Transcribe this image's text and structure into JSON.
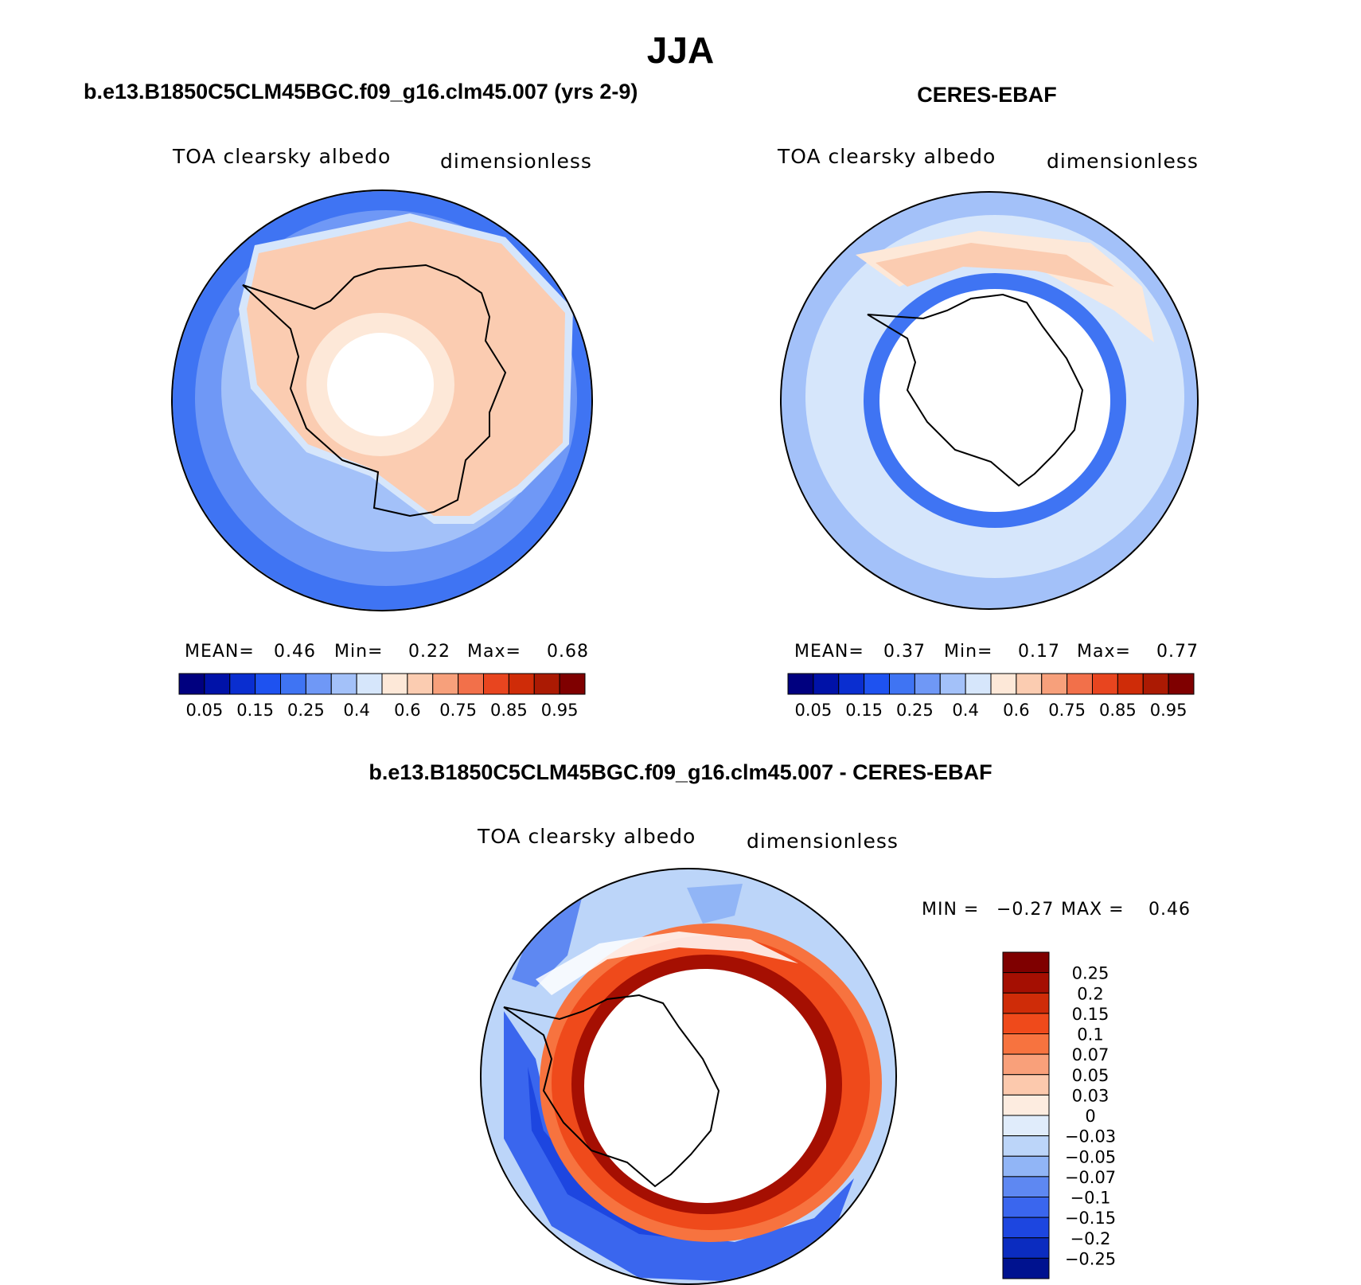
{
  "page_title": "JJA",
  "panels": [
    {
      "header": "b.e13.B1850C5CLM45BGC.f09_g16.clm45.007 (yrs 2-9)",
      "variable": "TOA clearsky albedo",
      "units": "dimensionless",
      "stats": {
        "mean_label": "MEAN=",
        "mean": "0.46",
        "min_label": "Min=",
        "min": "0.22",
        "max_label": "Max=",
        "max": "0.68"
      }
    },
    {
      "header": "CERES-EBAF",
      "variable": "TOA clearsky albedo",
      "units": "dimensionless",
      "stats": {
        "mean_label": "MEAN=",
        "mean": "0.37",
        "min_label": "Min=",
        "min": "0.17",
        "max_label": "Max=",
        "max": "0.77"
      }
    }
  ],
  "abs_colorbar": {
    "colors": [
      "#00007f",
      "#0012a8",
      "#0a2ed0",
      "#1e52f0",
      "#3f74f3",
      "#6f98f6",
      "#a3c1f9",
      "#d6e6fb",
      "#fde8d8",
      "#fbccb1",
      "#f7a07b",
      "#f2704a",
      "#e8451f",
      "#cf2c08",
      "#ab1a03",
      "#7f0000"
    ],
    "tick_labels": [
      "0.05",
      "0.15",
      "0.25",
      "0.4",
      "0.6",
      "0.75",
      "0.85",
      "0.95"
    ]
  },
  "diff_panel": {
    "header": "b.e13.B1850C5CLM45BGC.f09_g16.clm45.007 - CERES-EBAF",
    "variable": "TOA clearsky albedo",
    "units": "dimensionless",
    "stats": {
      "min_label": "MIN =",
      "min": "−0.27",
      "max_label": "MAX =",
      "max": "0.46"
    },
    "colorbar": {
      "colors": [
        "#7f0000",
        "#a50f02",
        "#cf2c08",
        "#ef4a1b",
        "#f7733f",
        "#f9a07a",
        "#fcc9ad",
        "#fdece0",
        "#e0ecfb",
        "#bcd5f9",
        "#91b5f6",
        "#5e88f2",
        "#3a66ee",
        "#1d46e0",
        "#0b2cc0",
        "#00128f"
      ],
      "tick_labels": [
        "0.25",
        "0.2",
        "0.15",
        "0.1",
        "0.07",
        "0.05",
        "0.03",
        "0",
        "−0.03",
        "−0.05",
        "−0.07",
        "−0.1",
        "−0.15",
        "−0.2",
        "−0.25"
      ]
    }
  }
}
